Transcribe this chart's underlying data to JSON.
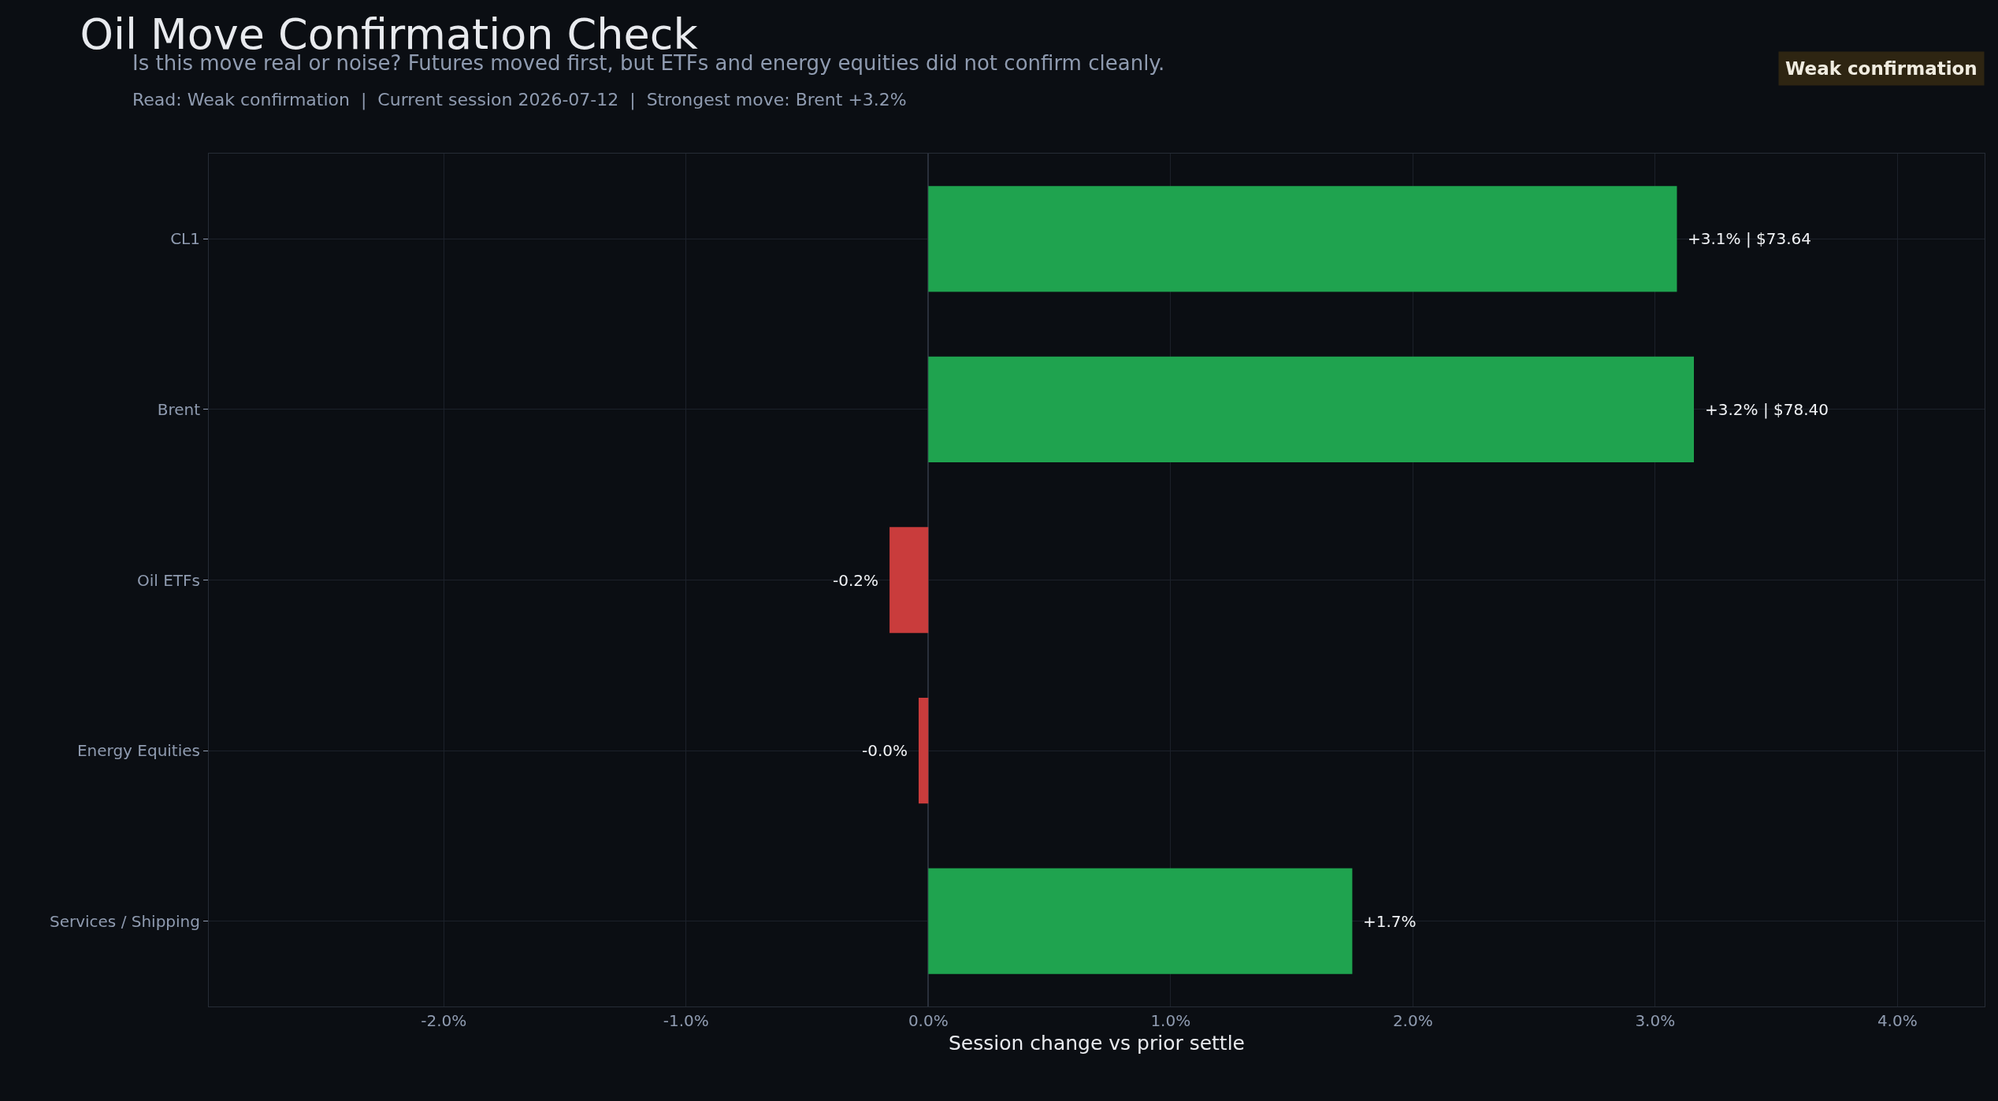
{
  "chart_data": {
    "type": "bar",
    "orientation": "horizontal",
    "title": "Oil Move Confirmation Check",
    "subtitle": "Is this move real or noise? Futures moved first, but ETFs and energy equities did not confirm cleanly.",
    "annotations": [
      "Read: Weak confirmation  |  Current session 2026-07-12  |  Strongest move: Brent +3.2%",
      "Weak confirmation"
    ],
    "xlabel": "Session change vs prior settle",
    "categories": [
      "CL1",
      "Brent",
      "Oil ETFs",
      "Energy Equities",
      "Services / Shipping"
    ],
    "values": [
      3.09,
      3.16,
      -0.16,
      -0.04,
      1.75
    ],
    "colors": [
      "#1fa34f",
      "#1fa34f",
      "#c93c3c",
      "#c93c3c",
      "#1fa34f"
    ],
    "value_labels": [
      "+3.1% | $73.64",
      "+3.2% | $78.40",
      "-0.2%",
      "-0.0%",
      "+1.7%"
    ],
    "xlim": [
      -2.97,
      4.36
    ],
    "xticks": [
      {
        "value": -2,
        "label": "-2.0%"
      },
      {
        "value": -1,
        "label": "-1.0%"
      },
      {
        "value": 0,
        "label": "0.0%"
      },
      {
        "value": 1,
        "label": "1.0%"
      },
      {
        "value": 2,
        "label": "2.0%"
      },
      {
        "value": 3,
        "label": "3.0%"
      },
      {
        "value": 4,
        "label": "4.0%"
      }
    ],
    "grid": true,
    "legend": false
  }
}
